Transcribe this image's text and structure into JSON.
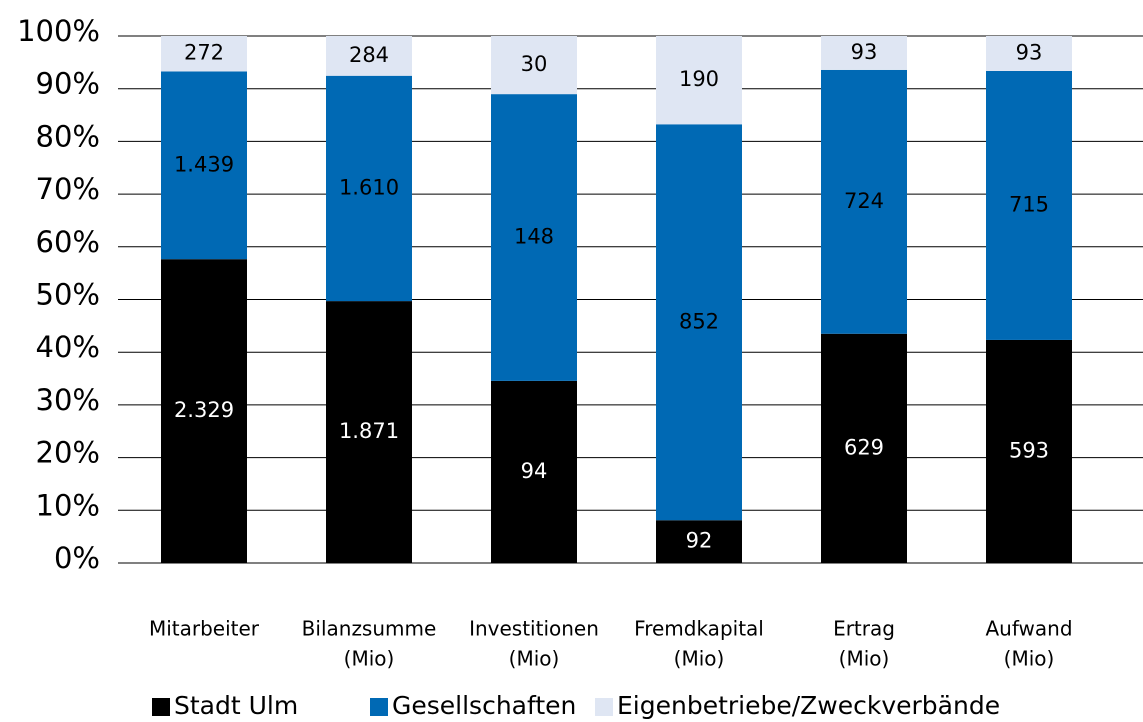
{
  "chart_data": {
    "type": "bar",
    "stack": "percent",
    "categories": [
      [
        "Mitarbeiter"
      ],
      [
        "Bilanzsumme",
        "(Mio)"
      ],
      [
        "Investitionen",
        "(Mio)"
      ],
      [
        "Fremdkapital",
        "(Mio)"
      ],
      [
        "Ertrag",
        "(Mio)"
      ],
      [
        "Aufwand",
        "(Mio)"
      ]
    ],
    "series": [
      {
        "name": "Stadt Ulm",
        "color": "#000000",
        "label_color": "#ffffff",
        "values": [
          2329,
          1871,
          94,
          92,
          629,
          593
        ],
        "value_labels": [
          "2.329",
          "1.871",
          "94",
          "92",
          "629",
          "593"
        ]
      },
      {
        "name": "Gesellschaften",
        "color": "#0069b4",
        "label_color": "#000000",
        "values": [
          1439,
          1610,
          148,
          852,
          724,
          715
        ],
        "value_labels": [
          "1.439",
          "1.610",
          "148",
          "852",
          "724",
          "715"
        ]
      },
      {
        "name": "Eigenbetriebe/Zweckverbände",
        "color": "#dfe6f3",
        "label_color": "#000000",
        "values": [
          272,
          284,
          30,
          190,
          93,
          93
        ]
      }
    ],
    "ylim": [
      0,
      100
    ],
    "yticks": [
      {
        "value": 0,
        "label": "0%"
      },
      {
        "value": 10,
        "label": "10%"
      },
      {
        "value": 20,
        "label": "20%"
      },
      {
        "value": 30,
        "label": "30%"
      },
      {
        "value": 40,
        "label": "40%"
      },
      {
        "value": 50,
        "label": "50%"
      },
      {
        "value": 60,
        "label": "60%"
      },
      {
        "value": 70,
        "label": "70%"
      },
      {
        "value": 80,
        "label": "80%"
      },
      {
        "value": 90,
        "label": "90%"
      },
      {
        "value": 100,
        "label": "100%"
      }
    ],
    "grid": true
  }
}
